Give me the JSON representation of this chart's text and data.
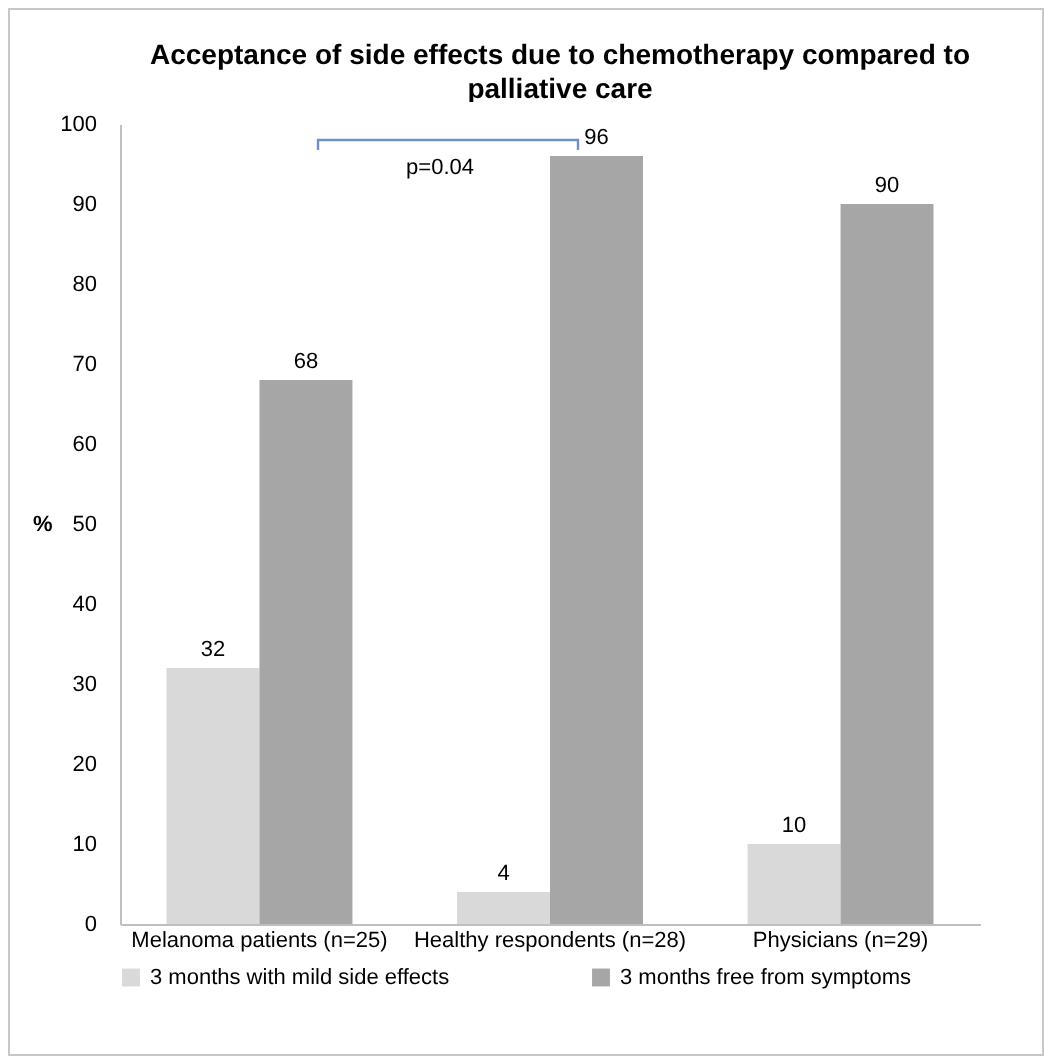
{
  "chart_data": {
    "type": "bar",
    "title": "Acceptance of side effects due to chemotherapy compared to palliative care",
    "ylabel": "%",
    "categories": [
      "Melanoma patients (n=25)",
      "Healthy respondents (n=28)",
      "Physicians (n=29)"
    ],
    "series": [
      {
        "name": "3 months with mild side effects",
        "color": "#d9d9d9",
        "values": [
          32,
          4,
          10
        ]
      },
      {
        "name": "3 months free from symptoms",
        "color": "#a6a6a6",
        "values": [
          68,
          96,
          90
        ]
      }
    ],
    "ylim": [
      0,
      100
    ],
    "yticks": [
      0,
      10,
      20,
      30,
      40,
      50,
      60,
      70,
      80,
      90,
      100
    ],
    "data_labels": true,
    "grid": false,
    "legend": "bottom",
    "annotations": [
      "p=0.04"
    ]
  }
}
